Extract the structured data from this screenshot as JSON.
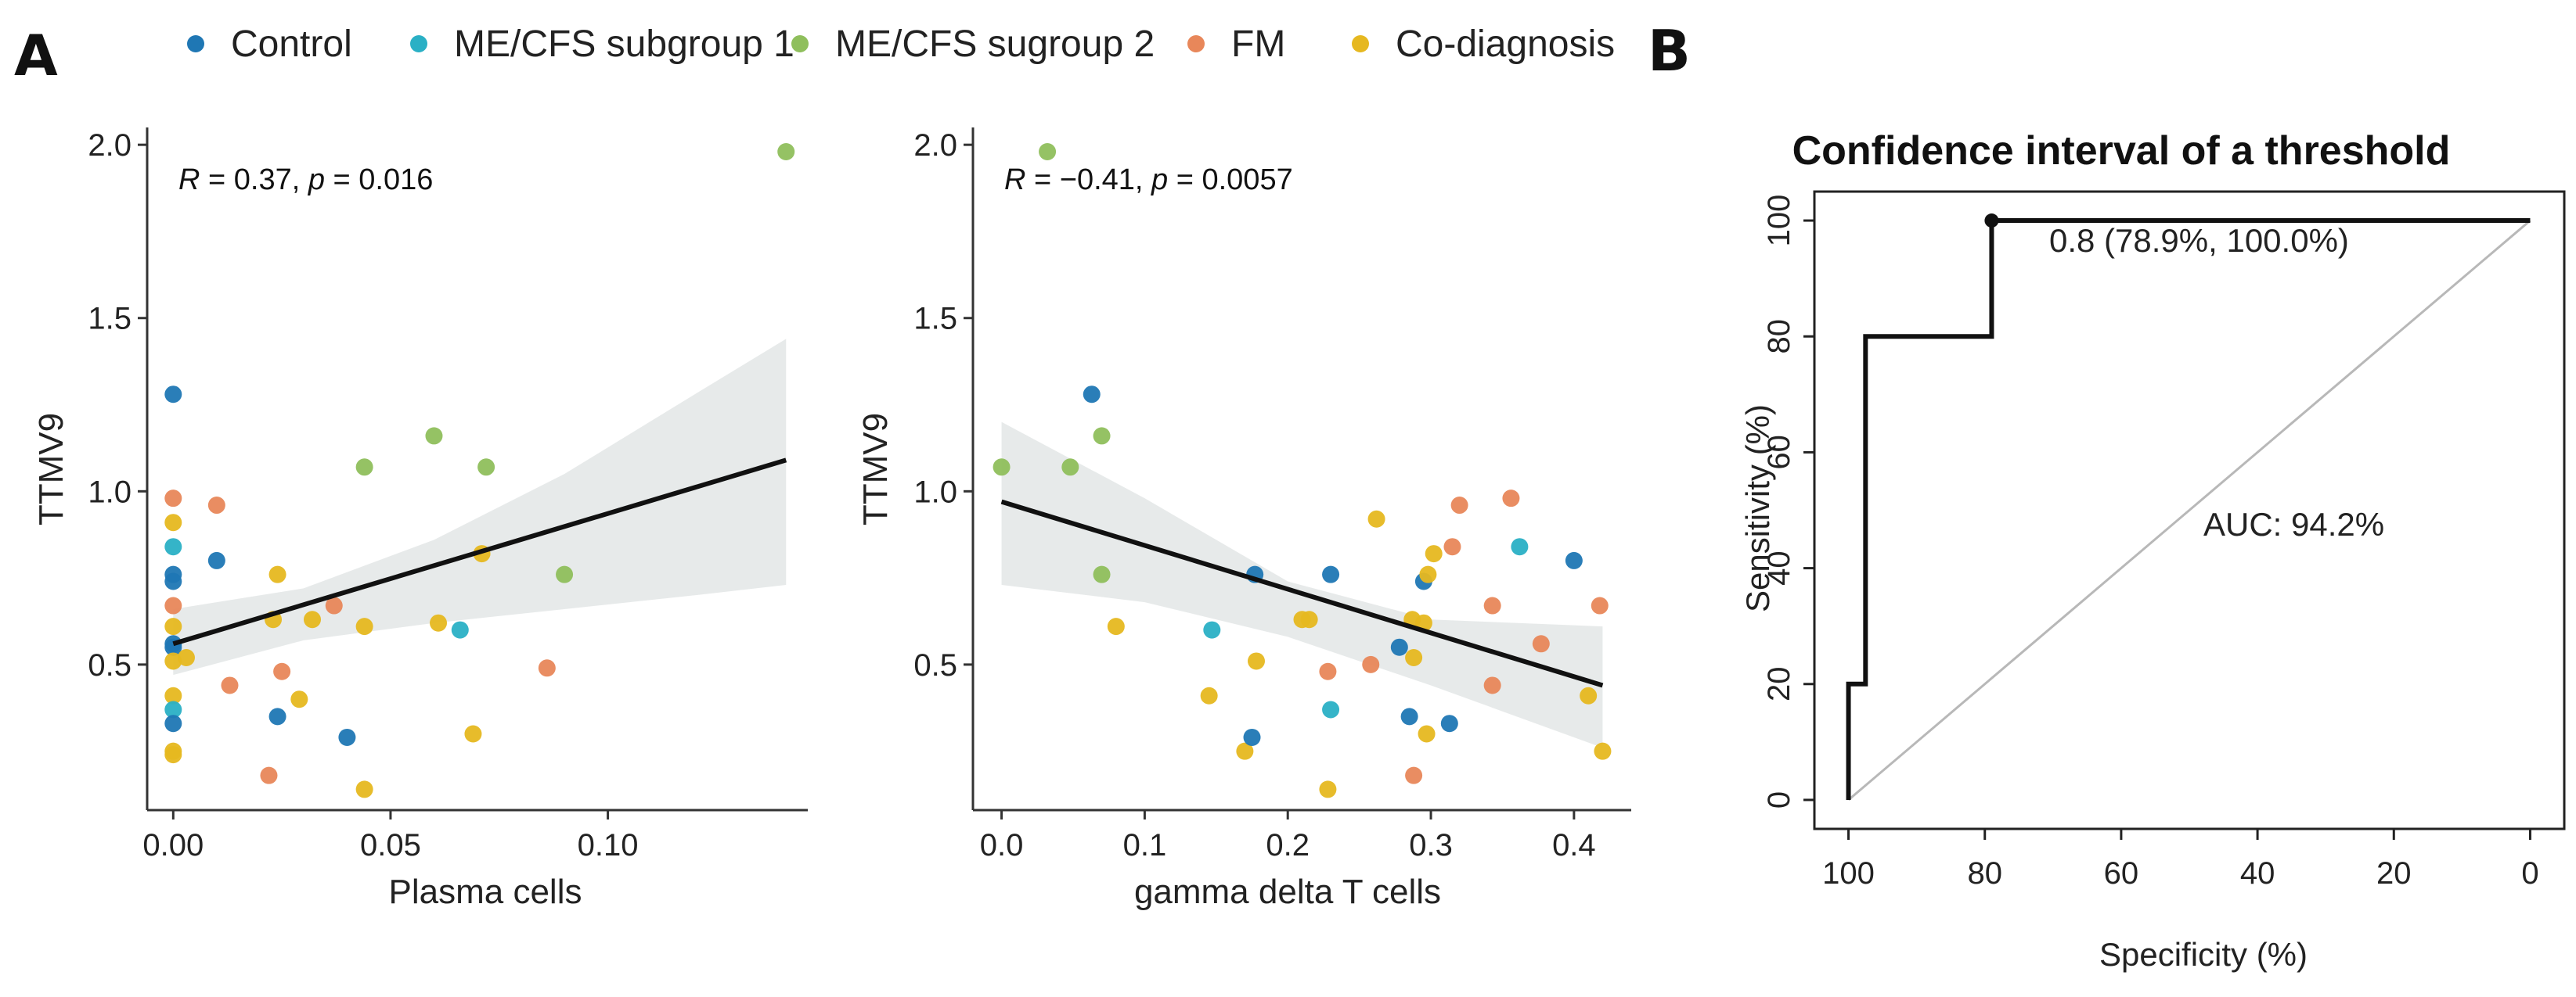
{
  "panels": {
    "a_label": "A",
    "b_label": "B"
  },
  "legend": {
    "items": [
      {
        "label": "Control",
        "color": "#1f77b4"
      },
      {
        "label": "ME/CFS subgroup 1",
        "color": "#2ab0c5"
      },
      {
        "label": "ME/CFS sugroup 2",
        "color": "#8fbf5c"
      },
      {
        "label": "FM",
        "color": "#e8875a"
      },
      {
        "label": "Co-diagnosis",
        "color": "#e6b820"
      }
    ]
  },
  "chart_data": [
    {
      "id": "scatter1",
      "type": "scatter",
      "xlabel": "Plasma cells",
      "ylabel": "TTMV9",
      "xlim": [
        -0.006,
        0.146
      ],
      "ylim": [
        0.08,
        2.05
      ],
      "xticks": [
        0.0,
        0.05,
        0.1
      ],
      "xtick_labels": [
        "0.00",
        "0.05",
        "0.10"
      ],
      "yticks": [
        0.5,
        1.0,
        1.5,
        2.0
      ],
      "ytick_labels": [
        "0.5",
        "1.0",
        "1.5",
        "2.0"
      ],
      "annotation": {
        "r_symbol": "R",
        "r_text": " = 0.37, ",
        "p_symbol": "p",
        "p_text": " = 0.016"
      },
      "fit": {
        "x": [
          0.0,
          0.141
        ],
        "y": [
          0.56,
          1.09
        ]
      },
      "ci": {
        "x": [
          0.0,
          0.03,
          0.06,
          0.09,
          0.12,
          0.141
        ],
        "lower": [
          0.47,
          0.57,
          0.62,
          0.66,
          0.7,
          0.73
        ],
        "upper": [
          0.66,
          0.72,
          0.86,
          1.05,
          1.28,
          1.44
        ]
      },
      "points": [
        {
          "x": 0.0,
          "y": 1.28,
          "g": 0
        },
        {
          "x": 0.0,
          "y": 0.98,
          "g": 3
        },
        {
          "x": 0.0,
          "y": 0.91,
          "g": 4
        },
        {
          "x": 0.0,
          "y": 0.84,
          "g": 1
        },
        {
          "x": 0.0,
          "y": 0.76,
          "g": 0
        },
        {
          "x": 0.0,
          "y": 0.74,
          "g": 0
        },
        {
          "x": 0.0,
          "y": 0.67,
          "g": 3
        },
        {
          "x": 0.0,
          "y": 0.61,
          "g": 4
        },
        {
          "x": 0.0,
          "y": 0.56,
          "g": 0
        },
        {
          "x": 0.0,
          "y": 0.55,
          "g": 0
        },
        {
          "x": 0.0,
          "y": 0.51,
          "g": 4
        },
        {
          "x": 0.0,
          "y": 0.41,
          "g": 4
        },
        {
          "x": 0.0,
          "y": 0.37,
          "g": 1
        },
        {
          "x": 0.0,
          "y": 0.33,
          "g": 0
        },
        {
          "x": 0.0,
          "y": 0.25,
          "g": 4
        },
        {
          "x": 0.0,
          "y": 0.24,
          "g": 4
        },
        {
          "x": 0.003,
          "y": 0.52,
          "g": 4
        },
        {
          "x": 0.01,
          "y": 0.96,
          "g": 3
        },
        {
          "x": 0.01,
          "y": 0.8,
          "g": 0
        },
        {
          "x": 0.013,
          "y": 0.44,
          "g": 3
        },
        {
          "x": 0.022,
          "y": 0.18,
          "g": 3
        },
        {
          "x": 0.023,
          "y": 0.63,
          "g": 4
        },
        {
          "x": 0.024,
          "y": 0.35,
          "g": 0
        },
        {
          "x": 0.024,
          "y": 0.76,
          "g": 4
        },
        {
          "x": 0.025,
          "y": 0.48,
          "g": 3
        },
        {
          "x": 0.029,
          "y": 0.4,
          "g": 4
        },
        {
          "x": 0.032,
          "y": 0.63,
          "g": 4
        },
        {
          "x": 0.037,
          "y": 0.67,
          "g": 3
        },
        {
          "x": 0.04,
          "y": 0.29,
          "g": 0
        },
        {
          "x": 0.044,
          "y": 1.07,
          "g": 2
        },
        {
          "x": 0.044,
          "y": 0.61,
          "g": 4
        },
        {
          "x": 0.044,
          "y": 0.14,
          "g": 4
        },
        {
          "x": 0.06,
          "y": 1.16,
          "g": 2
        },
        {
          "x": 0.061,
          "y": 0.62,
          "g": 4
        },
        {
          "x": 0.066,
          "y": 0.6,
          "g": 1
        },
        {
          "x": 0.069,
          "y": 0.3,
          "g": 4
        },
        {
          "x": 0.071,
          "y": 0.82,
          "g": 4
        },
        {
          "x": 0.072,
          "y": 1.07,
          "g": 2
        },
        {
          "x": 0.086,
          "y": 0.49,
          "g": 3
        },
        {
          "x": 0.09,
          "y": 0.76,
          "g": 2
        },
        {
          "x": 0.141,
          "y": 1.98,
          "g": 2
        }
      ]
    },
    {
      "id": "scatter2",
      "type": "scatter",
      "xlabel": "gamma delta T cells",
      "ylabel": "TTMV9",
      "xlim": [
        -0.02,
        0.44
      ],
      "ylim": [
        0.08,
        2.05
      ],
      "xticks": [
        0.0,
        0.1,
        0.2,
        0.3,
        0.4
      ],
      "xtick_labels": [
        "0.0",
        "0.1",
        "0.2",
        "0.3",
        "0.4"
      ],
      "yticks": [
        0.5,
        1.0,
        1.5,
        2.0
      ],
      "ytick_labels": [
        "0.5",
        "1.0",
        "1.5",
        "2.0"
      ],
      "annotation": {
        "r_symbol": "R",
        "r_text": " = −0.41, ",
        "p_symbol": "p",
        "p_text": " = 0.0057"
      },
      "fit": {
        "x": [
          0.0,
          0.42
        ],
        "y": [
          0.97,
          0.44
        ]
      },
      "ci": {
        "x": [
          0.0,
          0.1,
          0.2,
          0.3,
          0.42
        ],
        "lower": [
          0.73,
          0.68,
          0.58,
          0.44,
          0.26
        ],
        "upper": [
          1.2,
          0.98,
          0.74,
          0.63,
          0.61
        ]
      },
      "points": [
        {
          "x": 0.0,
          "y": 1.07,
          "g": 2
        },
        {
          "x": 0.032,
          "y": 1.98,
          "g": 2
        },
        {
          "x": 0.048,
          "y": 1.07,
          "g": 2
        },
        {
          "x": 0.063,
          "y": 1.28,
          "g": 0
        },
        {
          "x": 0.07,
          "y": 1.16,
          "g": 2
        },
        {
          "x": 0.07,
          "y": 0.76,
          "g": 2
        },
        {
          "x": 0.08,
          "y": 0.61,
          "g": 4
        },
        {
          "x": 0.145,
          "y": 0.41,
          "g": 4
        },
        {
          "x": 0.147,
          "y": 0.6,
          "g": 1
        },
        {
          "x": 0.17,
          "y": 0.25,
          "g": 4
        },
        {
          "x": 0.175,
          "y": 0.29,
          "g": 0
        },
        {
          "x": 0.177,
          "y": 0.76,
          "g": 0
        },
        {
          "x": 0.178,
          "y": 0.51,
          "g": 4
        },
        {
          "x": 0.21,
          "y": 0.63,
          "g": 4
        },
        {
          "x": 0.215,
          "y": 0.63,
          "g": 4
        },
        {
          "x": 0.228,
          "y": 0.48,
          "g": 3
        },
        {
          "x": 0.23,
          "y": 0.76,
          "g": 0
        },
        {
          "x": 0.23,
          "y": 0.37,
          "g": 1
        },
        {
          "x": 0.228,
          "y": 0.14,
          "g": 4
        },
        {
          "x": 0.258,
          "y": 0.5,
          "g": 3
        },
        {
          "x": 0.262,
          "y": 0.92,
          "g": 4
        },
        {
          "x": 0.278,
          "y": 0.55,
          "g": 0
        },
        {
          "x": 0.285,
          "y": 0.35,
          "g": 0
        },
        {
          "x": 0.287,
          "y": 0.63,
          "g": 4
        },
        {
          "x": 0.288,
          "y": 0.52,
          "g": 4
        },
        {
          "x": 0.288,
          "y": 0.18,
          "g": 3
        },
        {
          "x": 0.295,
          "y": 0.62,
          "g": 4
        },
        {
          "x": 0.295,
          "y": 0.74,
          "g": 0
        },
        {
          "x": 0.297,
          "y": 0.3,
          "g": 4
        },
        {
          "x": 0.298,
          "y": 0.76,
          "g": 4
        },
        {
          "x": 0.302,
          "y": 0.82,
          "g": 4
        },
        {
          "x": 0.313,
          "y": 0.33,
          "g": 0
        },
        {
          "x": 0.315,
          "y": 0.84,
          "g": 3
        },
        {
          "x": 0.32,
          "y": 0.96,
          "g": 3
        },
        {
          "x": 0.343,
          "y": 0.44,
          "g": 3
        },
        {
          "x": 0.343,
          "y": 0.67,
          "g": 3
        },
        {
          "x": 0.356,
          "y": 0.98,
          "g": 3
        },
        {
          "x": 0.362,
          "y": 0.84,
          "g": 1
        },
        {
          "x": 0.377,
          "y": 0.56,
          "g": 3
        },
        {
          "x": 0.4,
          "y": 0.8,
          "g": 0
        },
        {
          "x": 0.41,
          "y": 0.41,
          "g": 4
        },
        {
          "x": 0.418,
          "y": 0.67,
          "g": 3
        },
        {
          "x": 0.42,
          "y": 0.25,
          "g": 4
        }
      ]
    },
    {
      "id": "roc",
      "type": "line",
      "title": "Confidence interval of a threshold",
      "xlabel": "Specificity (%)",
      "ylabel": "Sensitivity (%)",
      "xlim": [
        105,
        -5
      ],
      "ylim": [
        -5,
        105
      ],
      "xticks": [
        100,
        80,
        60,
        40,
        20,
        0
      ],
      "xtick_labels": [
        "100",
        "80",
        "60",
        "40",
        "20",
        "0"
      ],
      "yticks": [
        0,
        20,
        40,
        60,
        80,
        100
      ],
      "ytick_labels": [
        "0",
        "20",
        "40",
        "60",
        "80",
        "100"
      ],
      "curve": {
        "specificity": [
          100,
          100,
          98,
          98,
          97.5,
          97.5,
          79,
          79,
          0
        ],
        "sensitivity": [
          0,
          20,
          20,
          20,
          20,
          80,
          80,
          100,
          100
        ]
      },
      "diagonal": {
        "specificity": [
          100,
          0
        ],
        "sensitivity": [
          0,
          100
        ]
      },
      "threshold_point": {
        "specificity": 79,
        "sensitivity": 100
      },
      "threshold_label": "0.8 (78.9%, 100.0%)",
      "auc_label": "AUC: 94.2%"
    }
  ]
}
